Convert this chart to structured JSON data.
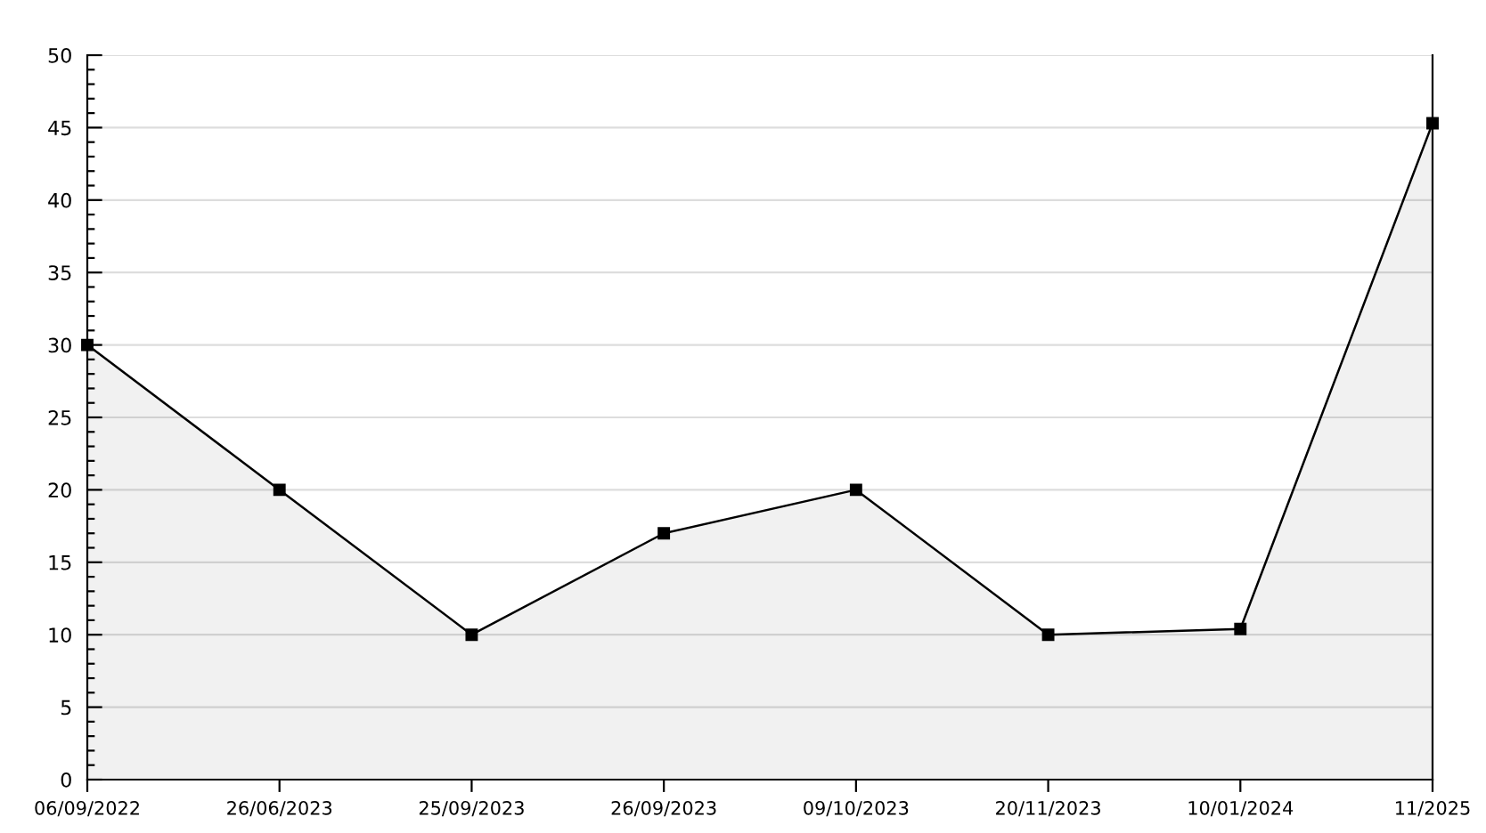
{
  "chart_data": {
    "type": "area",
    "categories": [
      "06/09/2022",
      "26/06/2023",
      "25/09/2023",
      "26/09/2023",
      "09/10/2023",
      "20/11/2023",
      "10/01/2024",
      "11/2025"
    ],
    "series": [
      {
        "color": "#000000",
        "values": [
          30,
          20,
          10,
          17,
          20,
          10,
          10.4,
          45.3
        ]
      }
    ],
    "ylim": [
      0,
      50
    ],
    "yticks": [
      0,
      5,
      10,
      15,
      20,
      25,
      30,
      35,
      40,
      45,
      50
    ],
    "grid": "y",
    "marker": "square",
    "line_style": "solid"
  }
}
